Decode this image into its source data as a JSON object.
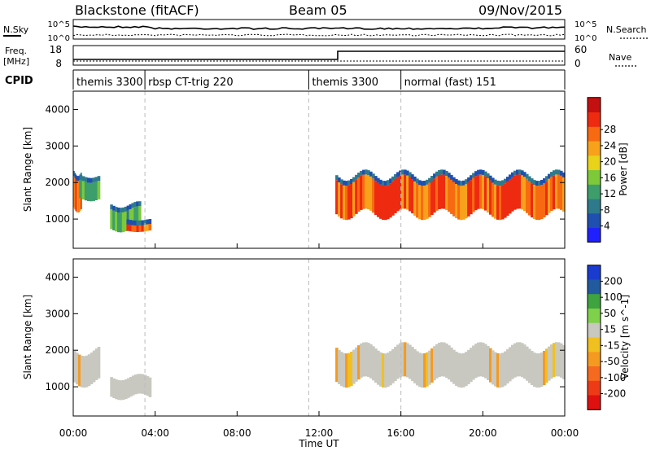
{
  "header": {
    "station": "Blackstone (fitACF)",
    "beam": "Beam 05",
    "date": "09/Nov/2015"
  },
  "top_panels": {
    "noise": {
      "left_label": "N.Sky",
      "right_label": "N.Search",
      "left_ticks": [
        "10^5",
        "10^0"
      ],
      "right_ticks": [
        "10^5",
        "10^0"
      ]
    },
    "freq": {
      "left_label_line1": "Freq.",
      "left_label_line2": "[MHz]",
      "right_label": "Nave",
      "left_ticks": [
        "18",
        "8"
      ],
      "right_ticks": [
        "60",
        "0"
      ]
    },
    "cpid": {
      "label": "CPID",
      "segments": [
        {
          "start_h": 0,
          "end_h": 3.5,
          "label": "themis 3300"
        },
        {
          "start_h": 3.5,
          "end_h": 11.5,
          "label": "rbsp CT-trig 220"
        },
        {
          "start_h": 11.5,
          "end_h": 16.0,
          "label": "themis 3300"
        },
        {
          "start_h": 16.0,
          "end_h": 24,
          "label": "normal (fast) 151"
        }
      ]
    }
  },
  "chart_data": [
    {
      "type": "heatmap",
      "name": "power",
      "xlabel": "",
      "ylabel": "Slant Range [km]",
      "xlim": [
        0,
        24
      ],
      "ylim": [
        200,
        4500
      ],
      "yticks": [
        "1000",
        "2000",
        "3000",
        "4000"
      ],
      "colorbar": {
        "label": "Power [dB]",
        "ticks": [
          "4",
          "8",
          "12",
          "16",
          "20",
          "24",
          "28"
        ],
        "colors": [
          "#2020ff",
          "#1f4fb0",
          "#2e7a8c",
          "#3d9e6c",
          "#7dc93a",
          "#e8d21a",
          "#f7a21a",
          "#f76a12",
          "#ee2a10",
          "#c41010"
        ]
      },
      "features": [
        {
          "from_h": 0.0,
          "to_h": 0.4,
          "range_km": [
            1200,
            2400
          ],
          "level": "high"
        },
        {
          "from_h": 0.3,
          "to_h": 1.3,
          "range_km": [
            1500,
            2200
          ],
          "level": "mid"
        },
        {
          "from_h": 1.8,
          "to_h": 3.3,
          "range_km": [
            650,
            1400
          ],
          "level": "mid"
        },
        {
          "from_h": 2.6,
          "to_h": 3.8,
          "range_km": [
            650,
            900
          ],
          "level": "high"
        },
        {
          "from_h": 12.8,
          "to_h": 24,
          "range_km": [
            1000,
            2300
          ],
          "level": "high"
        }
      ]
    },
    {
      "type": "heatmap",
      "name": "velocity",
      "xlabel": "Time UT",
      "ylabel": "Slant Range [km]",
      "xlim": [
        0,
        24
      ],
      "ylim": [
        200,
        4500
      ],
      "xticks": [
        "00:00",
        "04:00",
        "08:00",
        "12:00",
        "16:00",
        "20:00",
        "00:00"
      ],
      "yticks": [
        "1000",
        "2000",
        "3000",
        "4000"
      ],
      "colorbar": {
        "label": "Velocity [m s^-1]",
        "ticks": [
          "200",
          "100",
          "50",
          "15",
          "-15",
          "-50",
          "-100",
          "-200"
        ],
        "colors": [
          "#1a3bd0",
          "#215a9f",
          "#3fa33f",
          "#7fd04a",
          "#c8c8c0",
          "#f0c020",
          "#f59a20",
          "#f56a20",
          "#ef3a18",
          "#e01010"
        ]
      },
      "features": [
        {
          "from_h": 0.0,
          "to_h": 1.3,
          "range_km": [
            1000,
            2200
          ],
          "level": "near-zero"
        },
        {
          "from_h": 1.8,
          "to_h": 3.8,
          "range_km": [
            650,
            1400
          ],
          "level": "near-zero"
        },
        {
          "from_h": 12.8,
          "to_h": 24,
          "range_km": [
            1000,
            2300
          ],
          "level": "near-zero"
        }
      ]
    }
  ]
}
